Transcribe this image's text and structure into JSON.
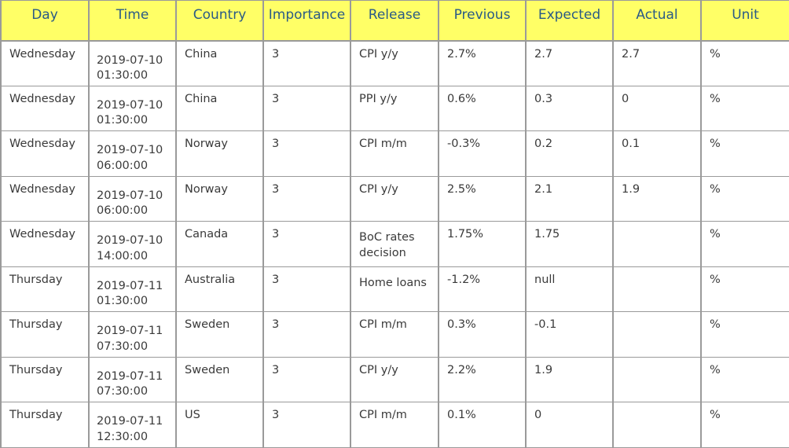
{
  "headers": {
    "day": "Day",
    "time": "Time",
    "country": "Country",
    "importance": "Importance",
    "release": "Release",
    "previous": "Previous",
    "expected": "Expected",
    "actual": "Actual",
    "unit": "Unit"
  },
  "rows": [
    {
      "day": "Wednesday",
      "time": "2019-07-10 01:30:00",
      "country": "China",
      "importance": "3",
      "release": "CPI y/y",
      "previous": "2.7%",
      "expected": "2.7",
      "actual": "2.7",
      "unit": "%"
    },
    {
      "day": "Wednesday",
      "time": "2019-07-10 01:30:00",
      "country": "China",
      "importance": "3",
      "release": "PPI y/y",
      "previous": "0.6%",
      "expected": "0.3",
      "actual": "0",
      "unit": "%"
    },
    {
      "day": "Wednesday",
      "time": "2019-07-10 06:00:00",
      "country": "Norway",
      "importance": "3",
      "release": "CPI m/m",
      "previous": "-0.3%",
      "expected": "0.2",
      "actual": "0.1",
      "unit": "%"
    },
    {
      "day": "Wednesday",
      "time": "2019-07-10 06:00:00",
      "country": "Norway",
      "importance": "3",
      "release": "CPI y/y",
      "previous": "2.5%",
      "expected": "2.1",
      "actual": "1.9",
      "unit": "%"
    },
    {
      "day": "Wednesday",
      "time": "2019-07-10 14:00:00",
      "country": "Canada",
      "importance": "3",
      "release": "BoC rates decision",
      "previous": "1.75%",
      "expected": "1.75",
      "actual": "",
      "unit": "%"
    },
    {
      "day": "Thursday",
      "time": "2019-07-11 01:30:00",
      "country": "Australia",
      "importance": "3",
      "release": "Home loans",
      "previous": "-1.2%",
      "expected": "null",
      "actual": "",
      "unit": "%"
    },
    {
      "day": "Thursday",
      "time": "2019-07-11 07:30:00",
      "country": "Sweden",
      "importance": "3",
      "release": "CPI m/m",
      "previous": "0.3%",
      "expected": "-0.1",
      "actual": "",
      "unit": "%"
    },
    {
      "day": "Thursday",
      "time": "2019-07-11 07:30:00",
      "country": "Sweden",
      "importance": "3",
      "release": "CPI y/y",
      "previous": "2.2%",
      "expected": "1.9",
      "actual": "",
      "unit": "%"
    },
    {
      "day": "Thursday",
      "time": "2019-07-11 12:30:00",
      "country": "US",
      "importance": "3",
      "release": "CPI m/m",
      "previous": "0.1%",
      "expected": "0",
      "actual": "",
      "unit": "%"
    }
  ],
  "colors": {
    "header_background": "#ffff66",
    "header_text": "#2a5a86",
    "cell_text": "#3a3a3a",
    "border": "#9a9a9a"
  }
}
